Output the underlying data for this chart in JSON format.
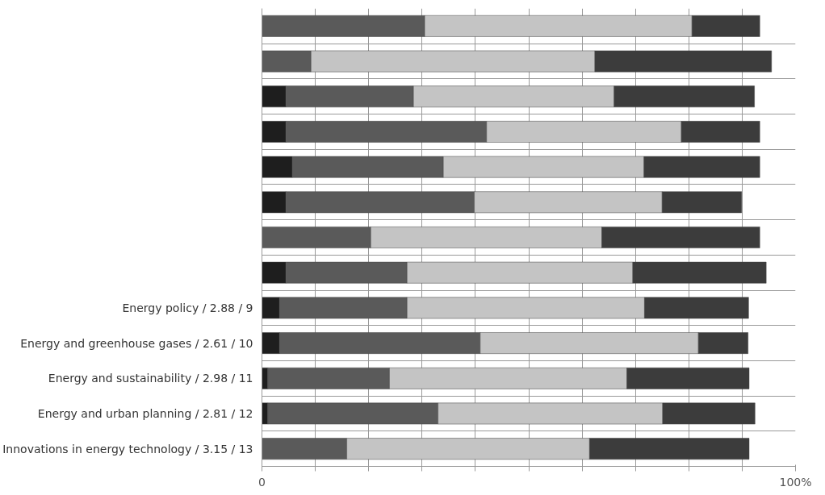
{
  "chart_data": {
    "type": "bar",
    "orientation": "horizontal",
    "stacked": true,
    "categories": [
      null,
      null,
      null,
      null,
      null,
      null,
      null,
      null,
      "Energy policy / 2.88 / 9",
      "Energy and greenhouse gases / 2.61 / 10",
      "Energy and sustainability / 2.98 / 11",
      "Energy and urban planning / 2.81 / 12",
      "Innovations in energy technology / 3.15 / 13"
    ],
    "series": [
      {
        "color": "#1e1e1e",
        "values": [
          0,
          0,
          4.5,
          4.5,
          5.7,
          4.5,
          0,
          4.5,
          3.3,
          3.3,
          1.1,
          1.1,
          0
        ]
      },
      {
        "color": "#5a5a5a",
        "values": [
          30.5,
          9.2,
          23.9,
          37.6,
          28.3,
          35.3,
          20.4,
          22.7,
          23.9,
          37.6,
          22.8,
          31.9,
          15.9
        ]
      },
      {
        "color": "#c4c4c4",
        "values": [
          50.1,
          53.2,
          37.6,
          36.5,
          37.6,
          35.2,
          43.3,
          42.3,
          44.5,
          40.9,
          44.5,
          42.1,
          45.5
        ]
      },
      {
        "color": "#3c3c3c",
        "values": [
          12.7,
          33.1,
          26.3,
          14.7,
          21.7,
          14.9,
          29.6,
          25.0,
          19.5,
          9.3,
          22.9,
          17.3,
          29.9
        ]
      }
    ],
    "xlim": [
      0,
      100
    ],
    "xticks": [
      {
        "value": 0,
        "label": "0"
      },
      {
        "value": 10,
        "label": null
      },
      {
        "value": 20,
        "label": null
      },
      {
        "value": 30,
        "label": null
      },
      {
        "value": 40,
        "label": null
      },
      {
        "value": 50,
        "label": null
      },
      {
        "value": 60,
        "label": null
      },
      {
        "value": 70,
        "label": null
      },
      {
        "value": 80,
        "label": null
      },
      {
        "value": 90,
        "label": null
      },
      {
        "value": 100,
        "label": "100%"
      }
    ],
    "grid": true
  }
}
